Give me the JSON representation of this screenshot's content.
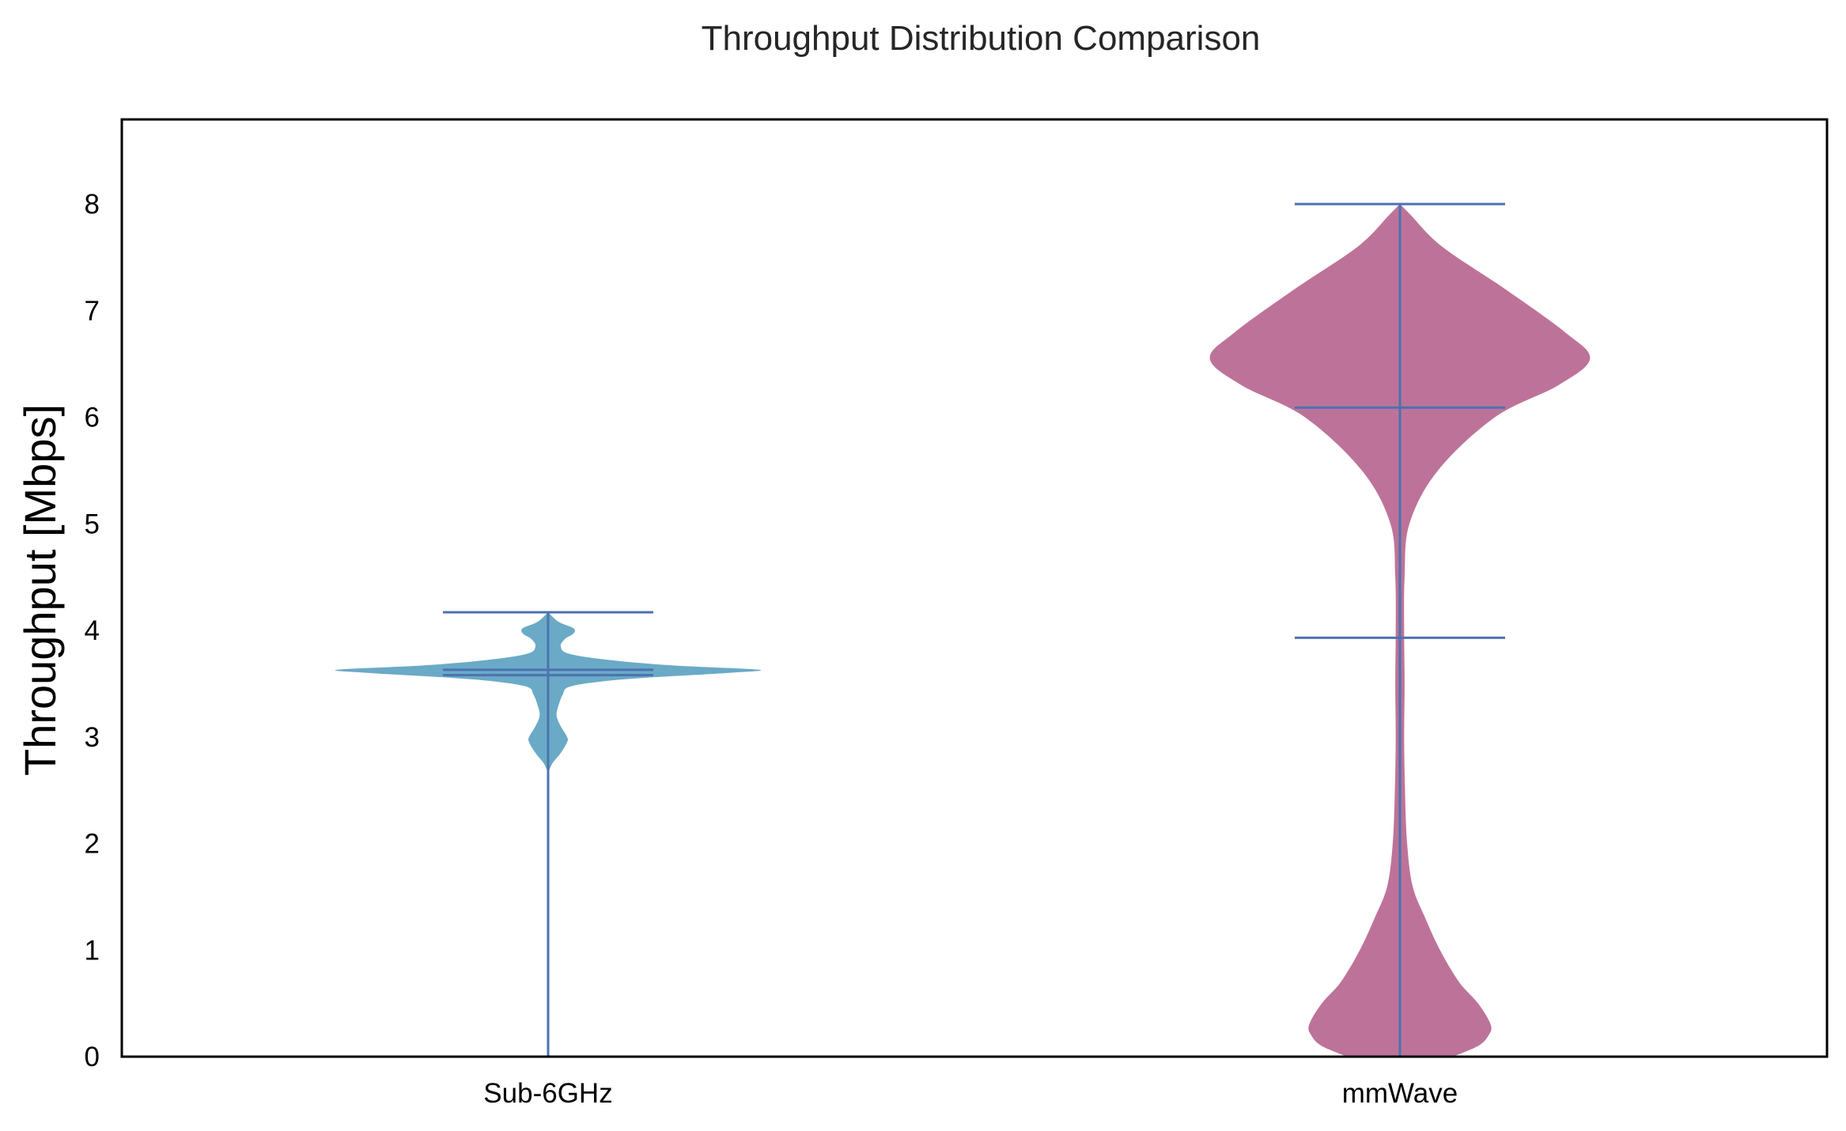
{
  "chart_data": {
    "type": "violin",
    "title": "Throughput Distribution Comparison",
    "xlabel": "",
    "ylabel": "Throughput [Mbps]",
    "categories": [
      "Sub-6GHz",
      "mmWave"
    ],
    "ylim": [
      0,
      8.8
    ],
    "yticks": [
      0,
      1,
      2,
      3,
      4,
      5,
      6,
      7,
      8
    ],
    "grid": false,
    "legend": "none",
    "colors": {
      "Sub-6GHz": "#6aaac6",
      "mmWave": "#bd7399",
      "stats_lines": "#4c72b0",
      "axes": "#000000"
    },
    "series": [
      {
        "category": "Sub-6GHz",
        "min": 0,
        "max": 4.17,
        "mean": 3.63,
        "median": 3.58,
        "density": [
          [
            2.66,
            0.0
          ],
          [
            2.75,
            0.02
          ],
          [
            2.85,
            0.06
          ],
          [
            2.95,
            0.09
          ],
          [
            3.0,
            0.09
          ],
          [
            3.1,
            0.06
          ],
          [
            3.2,
            0.04
          ],
          [
            3.3,
            0.05
          ],
          [
            3.4,
            0.07
          ],
          [
            3.47,
            0.1
          ],
          [
            3.52,
            0.25
          ],
          [
            3.56,
            0.5
          ],
          [
            3.6,
            0.85
          ],
          [
            3.63,
            1.0
          ],
          [
            3.67,
            0.6
          ],
          [
            3.72,
            0.3
          ],
          [
            3.78,
            0.1
          ],
          [
            3.85,
            0.06
          ],
          [
            3.92,
            0.08
          ],
          [
            3.97,
            0.12
          ],
          [
            4.02,
            0.12
          ],
          [
            4.08,
            0.05
          ],
          [
            4.17,
            0.0
          ]
        ]
      },
      {
        "category": "mmWave",
        "min": 0,
        "max": 8.0,
        "mean": 3.93,
        "median": 6.09,
        "density": [
          [
            0.0,
            0.25
          ],
          [
            0.1,
            0.37
          ],
          [
            0.2,
            0.42
          ],
          [
            0.3,
            0.43
          ],
          [
            0.5,
            0.37
          ],
          [
            0.7,
            0.28
          ],
          [
            1.0,
            0.19
          ],
          [
            1.3,
            0.12
          ],
          [
            1.6,
            0.06
          ],
          [
            2.0,
            0.034
          ],
          [
            2.5,
            0.024
          ],
          [
            3.0,
            0.02
          ],
          [
            3.5,
            0.022
          ],
          [
            4.0,
            0.02
          ],
          [
            4.5,
            0.022
          ],
          [
            5.0,
            0.045
          ],
          [
            5.5,
            0.18
          ],
          [
            6.0,
            0.45
          ],
          [
            6.3,
            0.75
          ],
          [
            6.55,
            0.9
          ],
          [
            6.8,
            0.78
          ],
          [
            7.2,
            0.5
          ],
          [
            7.6,
            0.2
          ],
          [
            7.9,
            0.05
          ],
          [
            8.0,
            0.0
          ]
        ]
      }
    ]
  }
}
